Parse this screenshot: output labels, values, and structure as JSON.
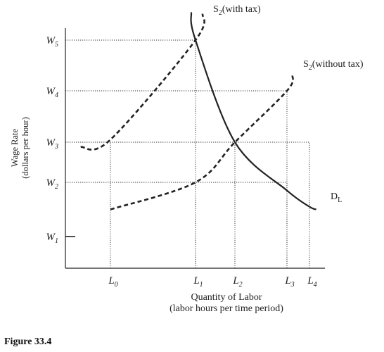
{
  "chart_data": {
    "type": "line",
    "figure_caption": "Figure 33.4",
    "xlabel": "Quantity of Labor",
    "xlabel_line2": "(labor hours per time period)",
    "ylabel": "Wage Rate",
    "ylabel_line2": "(dollars per hour)",
    "y_ticks": [
      {
        "main": "W",
        "sub": "1",
        "value": 1
      },
      {
        "main": "W",
        "sub": "2",
        "value": 2
      },
      {
        "main": "W",
        "sub": "3",
        "value": 3
      },
      {
        "main": "W",
        "sub": "4",
        "value": 4
      },
      {
        "main": "W",
        "sub": "5",
        "value": 5
      }
    ],
    "x_ticks": [
      {
        "main": "L",
        "sub": "0",
        "value": 0
      },
      {
        "main": "L",
        "sub": "1",
        "value": 1
      },
      {
        "main": "L",
        "sub": "2",
        "value": 2
      },
      {
        "main": "L",
        "sub": "3",
        "value": 3
      },
      {
        "main": "L",
        "sub": "4",
        "value": 4
      }
    ],
    "series": [
      {
        "name": "S2 (with tax)",
        "label_main": "S",
        "label_sub": "2",
        "label_rest": "(with tax)",
        "style": "dashed",
        "points": [
          [
            -0.35,
            2.88
          ],
          [
            0,
            3.05
          ],
          [
            1,
            5.0
          ],
          [
            1.18,
            5.52
          ]
        ]
      },
      {
        "name": "S2 (without tax)",
        "label_main": "S",
        "label_sub": "2",
        "label_rest": "(without tax)",
        "style": "dashed",
        "points": [
          [
            0,
            1.5
          ],
          [
            1,
            2.0
          ],
          [
            2,
            3.0
          ],
          [
            3,
            4.0
          ],
          [
            3.25,
            4.3
          ]
        ]
      },
      {
        "name": "DL",
        "label_main": "D",
        "label_sub": "L",
        "label_rest": "",
        "style": "solid",
        "points": [
          [
            0.95,
            5.55
          ],
          [
            1,
            5.0
          ],
          [
            2,
            3.0
          ],
          [
            3,
            1.85
          ],
          [
            4,
            1.55
          ],
          [
            4.3,
            1.5
          ]
        ]
      }
    ],
    "guides": [
      {
        "x": 1,
        "y": 5
      },
      {
        "x": 3,
        "y": 4
      },
      {
        "x": 2,
        "y": 3
      },
      {
        "x": 4,
        "y": 3
      },
      {
        "x": 0,
        "y": 3
      },
      {
        "x": 1,
        "y": 2
      },
      {
        "x": 3,
        "y": 2
      }
    ],
    "grid": false
  }
}
